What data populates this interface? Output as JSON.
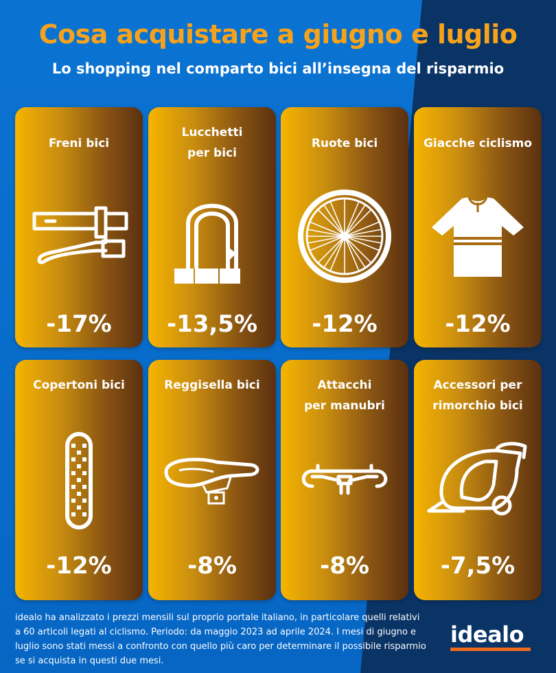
{
  "header": {
    "title": "Cosa acquistare a giugno e luglio",
    "subtitle": "Lo shopping nel comparto bici all’insegna del risparmio"
  },
  "cards": [
    {
      "label": "Freni bici",
      "value": "-17%",
      "icon": "brake-lever-icon"
    },
    {
      "label": "Lucchetti\nper bici",
      "value": "-13,5%",
      "icon": "u-lock-icon"
    },
    {
      "label": "Ruote bici",
      "value": "-12%",
      "icon": "wheel-icon"
    },
    {
      "label": "Giacche ciclismo",
      "value": "-12%",
      "icon": "cycling-jersey-icon"
    },
    {
      "label": "Copertoni bici",
      "value": "-12%",
      "icon": "tire-icon"
    },
    {
      "label": "Reggisella bici",
      "value": "-8%",
      "icon": "saddle-icon"
    },
    {
      "label": "Attacchi\nper manubri",
      "value": "-8%",
      "icon": "handlebar-icon"
    },
    {
      "label": "Accessori per\nrimorchio bici",
      "value": "-7,5%",
      "icon": "bike-trailer-icon"
    }
  ],
  "footer": {
    "text": "idealo ha analizzato i prezzi mensili sul proprio portale italiano, in particolare quelli relativi a 60 articoli legati al ciclismo. Periodo: da maggio 2023 ad aprile 2024. I mesi di giugno e luglio sono stati messi a confronto con quello più caro per determinare il possibile risparmio se si acquista in questi due mesi.",
    "logo": "idealo"
  },
  "colors": {
    "title": "#f7a21b",
    "brand_accent": "#f26b1d",
    "background_blue": "#0a73d2",
    "background_dark": "#0a3466"
  }
}
